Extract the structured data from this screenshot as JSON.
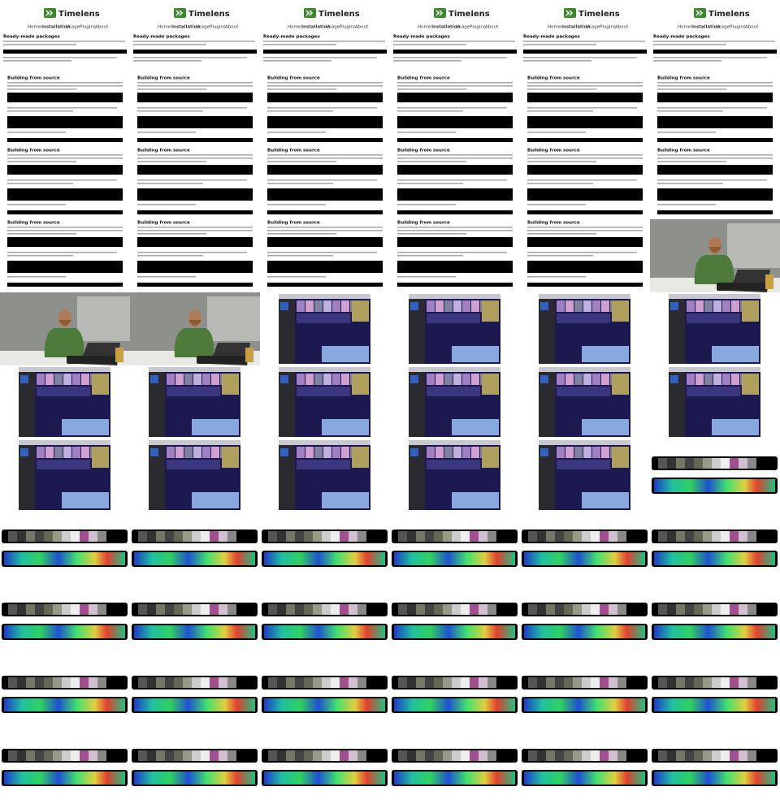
{
  "page": {
    "brand": "Timelens",
    "nav": [
      "Home",
      "Installation",
      "Usage",
      "Plugins",
      "About"
    ],
    "headings": [
      "Ready-made packages",
      "Building from source"
    ]
  }
}
